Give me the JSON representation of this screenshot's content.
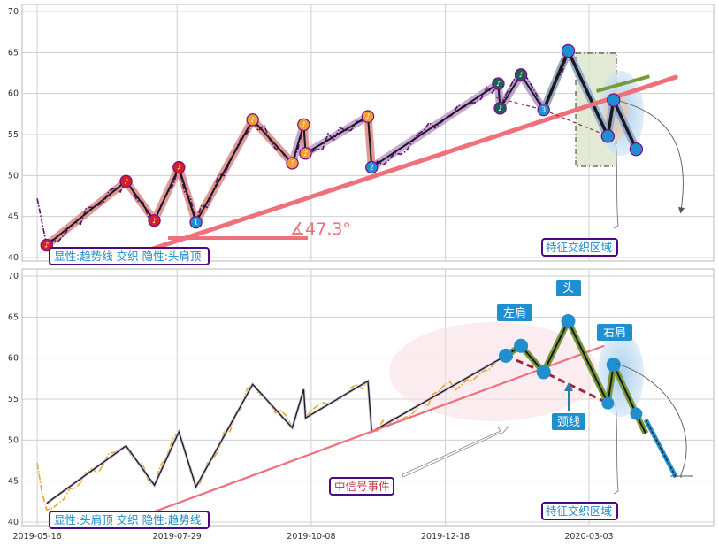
{
  "colors": {
    "purple_dashdot": "#5b0a78",
    "black": "#1a1a1a",
    "salmon_band": "#dc8f8c",
    "lilac_band": "#c29ed0",
    "trend_red": "#ef6f7a",
    "olive": "#7a9a3a",
    "blue": "#1f8fd0",
    "orange": "#f0a030",
    "red_marker": "#d52020",
    "marker_ring": "#7a0a8a",
    "dark_teal": "#1d5f5a",
    "gold_dashdot": "#e8a830",
    "dark_red_dash": "#a0253a",
    "box_border": "#4a0a80",
    "box_text": "#1a8ac8",
    "green_box": "#dde6cf"
  },
  "chart_data": [
    {
      "type": "line",
      "panel": "top",
      "ylim": [
        40,
        70
      ],
      "yticks": [
        40,
        45,
        50,
        55,
        60,
        65,
        70
      ],
      "x_range_days": [
        -8,
        358
      ],
      "trend_line": {
        "start": [
          47,
          40
        ],
        "end": [
          338,
          62
        ]
      },
      "angle_label": "∡47.3°",
      "angle_value": 47.3,
      "pivots": [
        {
          "d": 5,
          "y": 41.5,
          "kind": "low",
          "color": "red"
        },
        {
          "d": 47,
          "y": 49.3,
          "kind": "high",
          "color": "red"
        },
        {
          "d": 62,
          "y": 44.5,
          "kind": "low",
          "color": "red"
        },
        {
          "d": 75,
          "y": 51.0,
          "kind": "high",
          "color": "red"
        },
        {
          "d": 84,
          "y": 44.3,
          "kind": "low",
          "color": "blue",
          "num": "1"
        },
        {
          "d": 114,
          "y": 56.8,
          "kind": "high",
          "color": "orange"
        },
        {
          "d": 135,
          "y": 51.5,
          "kind": "low",
          "color": "orange"
        },
        {
          "d": 141,
          "y": 56.2,
          "kind": "high",
          "color": "orange"
        },
        {
          "d": 142,
          "y": 52.7,
          "kind": "low",
          "color": "orange"
        },
        {
          "d": 175,
          "y": 57.2,
          "kind": "high",
          "color": "orange"
        },
        {
          "d": 177,
          "y": 51.0,
          "kind": "low",
          "color": "blue",
          "num": "2"
        },
        {
          "d": 244,
          "y": 61.2,
          "kind": "high",
          "color": "teal"
        },
        {
          "d": 245,
          "y": 58.2,
          "kind": "low",
          "color": "teal"
        },
        {
          "d": 256,
          "y": 62.3,
          "kind": "high",
          "color": "teal"
        },
        {
          "d": 268,
          "y": 58.0,
          "kind": "low",
          "color": "blue",
          "num": "3"
        },
        {
          "d": 281,
          "y": 65.2,
          "kind": "high",
          "color": "blue"
        },
        {
          "d": 302,
          "y": 54.8,
          "kind": "low",
          "color": "blue"
        },
        {
          "d": 305,
          "y": 59.2,
          "kind": "high",
          "color": "blue"
        },
        {
          "d": 317,
          "y": 53.2,
          "kind": "low",
          "color": "blue"
        }
      ],
      "annotation_box": "显性:趋势线 交织 隐性:头肩顶",
      "zone_label": "特征交织区域"
    },
    {
      "type": "line",
      "panel": "bottom",
      "ylim": [
        40,
        70
      ],
      "yticks": [
        40,
        45,
        50,
        55,
        60,
        65,
        70
      ],
      "x_range_days": [
        -8,
        358
      ],
      "xticks": [
        {
          "d": 0,
          "label": "2019-05-16"
        },
        {
          "d": 74,
          "label": "2019-07-29"
        },
        {
          "d": 145,
          "label": "2019-10-08"
        },
        {
          "d": 216,
          "label": "2019-12-18"
        },
        {
          "d": 292,
          "label": "2020-03-03"
        }
      ],
      "trend_line": {
        "start": [
          47,
          40
        ],
        "end": [
          300,
          61.5
        ]
      },
      "head_shoulders": {
        "left_shoulder": {
          "d": 256,
          "y": 61.5
        },
        "head": {
          "d": 281,
          "y": 64.5
        },
        "right_shoulder": {
          "d": 305,
          "y": 59.2
        },
        "neckline_left": {
          "d": 248,
          "y": 60.3
        },
        "neckline_mid": {
          "d": 268,
          "y": 58.3
        },
        "neckline_right": {
          "d": 302,
          "y": 54.5
        }
      },
      "labels": {
        "left_shoulder": "左肩",
        "head": "头",
        "right_shoulder": "右肩",
        "neckline": "颈线"
      },
      "event_label": "中信号事件",
      "annotation_box": "显性:头肩顶 交织 隐性:趋势线",
      "zone_label": "特征交织区域"
    }
  ]
}
